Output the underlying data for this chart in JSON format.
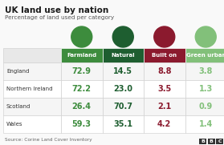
{
  "title": "UK land use by nation",
  "subtitle": "Percentage of land used per category",
  "source": "Source: Corine Land Cover Inventory",
  "columns": [
    "Farmland",
    "Natural",
    "Built on",
    "Green urban"
  ],
  "rows": [
    "England",
    "Northern Ireland",
    "Scotland",
    "Wales"
  ],
  "values": [
    [
      72.9,
      14.5,
      8.8,
      3.8
    ],
    [
      72.2,
      23.0,
      3.5,
      1.3
    ],
    [
      26.4,
      70.7,
      2.1,
      0.9
    ],
    [
      59.3,
      35.1,
      4.2,
      1.4
    ]
  ],
  "header_bg_colors": [
    "#3d8c3d",
    "#1e5e30",
    "#8b1a2e",
    "#82c07a"
  ],
  "value_colors": [
    "#3d8c3d",
    "#1e5e30",
    "#8b1a2e",
    "#82c07a"
  ],
  "icon_colors": [
    "#3d8c3d",
    "#1e5e30",
    "#8b1a2e",
    "#82c07a"
  ],
  "row_bg_even": "#f5f5f5",
  "row_bg_odd": "#ffffff",
  "header_row_bg": "#e0e0e0",
  "title_color": "#1a1a1a",
  "subtitle_color": "#555555",
  "source_color": "#666666",
  "grid_color": "#cccccc",
  "background_color": "#f9f9f9",
  "bbc_color": "#333333"
}
